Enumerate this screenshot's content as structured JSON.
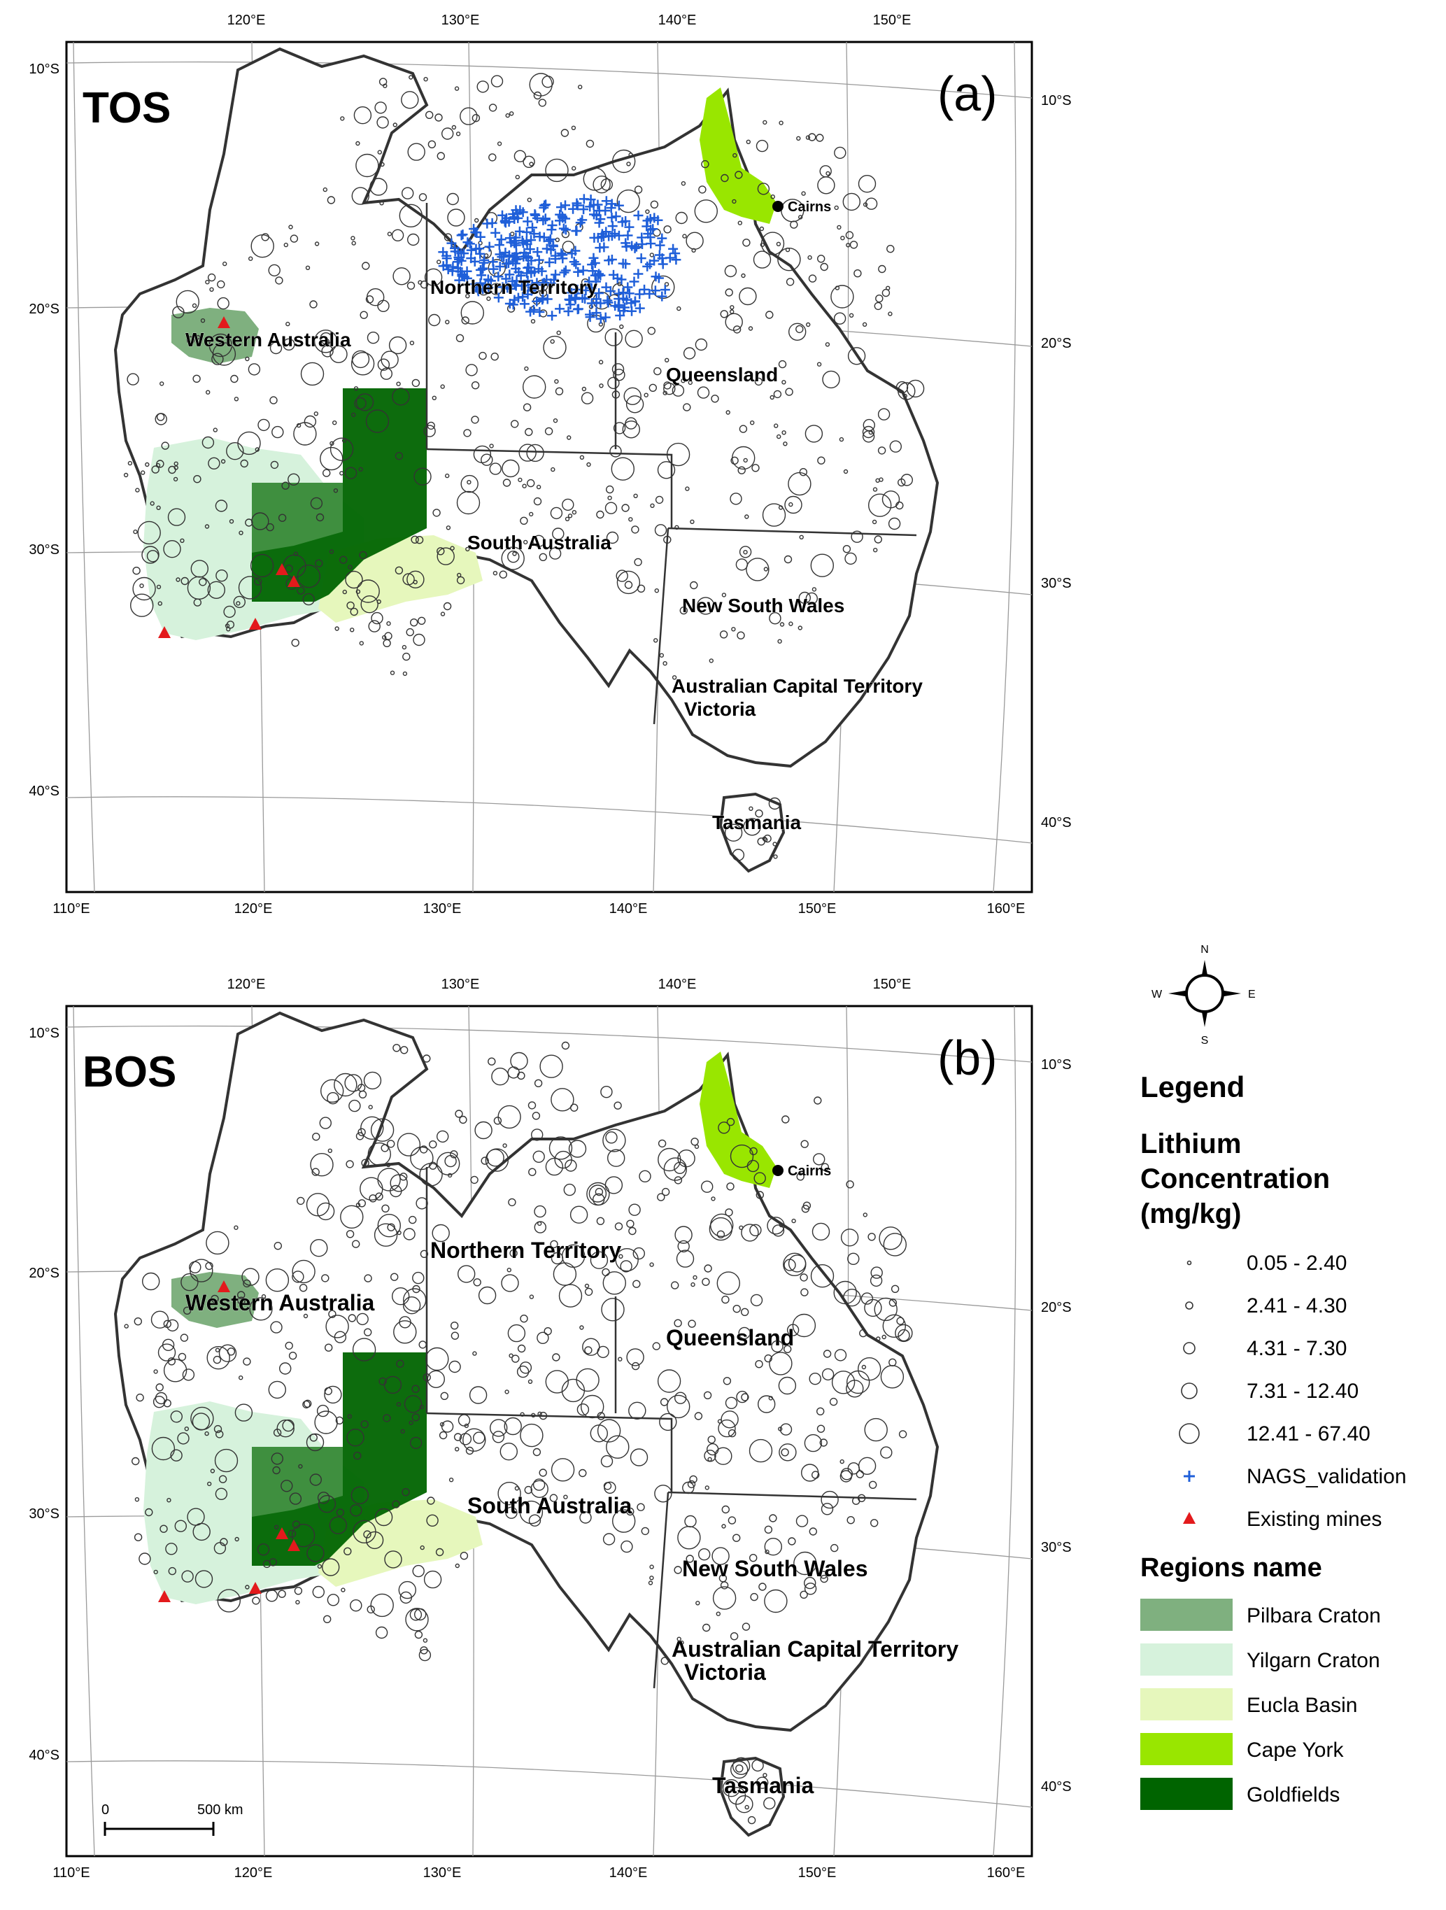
{
  "panels": [
    {
      "id": "a",
      "label": "TOS",
      "panel_letter": "(a)",
      "show_validation": true,
      "regions": {
        "western_australia": "Western Australia",
        "northern_territory": "Northern Territory",
        "south_australia": "South Australia",
        "queensland": "Queensland",
        "new_south_wales": "New South Wales",
        "act": "Australian Capital Territory",
        "victoria": "Victoria",
        "tasmania": "Tasmania"
      },
      "city": "Cairns"
    },
    {
      "id": "b",
      "label": "BOS",
      "panel_letter": "(b)",
      "show_validation": false,
      "regions": {
        "western_australia": "Western Australia",
        "northern_territory": "Northern Territory",
        "south_australia": "South Australia",
        "queensland": "Queensland",
        "new_south_wales": "New South Wales",
        "act": "Australian Capital Territory",
        "victoria": "Victoria",
        "tasmania": "Tasmania"
      },
      "city": "Cairns",
      "scale_bar": {
        "start": "0",
        "end": "500 km"
      }
    }
  ],
  "graticule": {
    "top_lon": [
      "120°E",
      "130°E",
      "140°E",
      "150°E"
    ],
    "bottom_lon": [
      "110°E",
      "120°E",
      "130°E",
      "140°E",
      "150°E",
      "160°E"
    ],
    "left_lat": [
      "10°S",
      "20°S",
      "30°S",
      "40°S"
    ],
    "right_lat": [
      "10°S",
      "20°S",
      "30°S",
      "40°S"
    ]
  },
  "compass": {
    "n": "N",
    "s": "S",
    "e": "E",
    "w": "W"
  },
  "legend": {
    "title": "Legend",
    "concentration_title_1": "Lithium",
    "concentration_title_2": "Concentration",
    "concentration_title_3": "(mg/kg)",
    "classes": [
      "0.05 - 2.40",
      "2.41 - 4.30",
      "4.31 - 7.30",
      "7.31 - 12.40",
      "12.41 - 67.40"
    ],
    "validation_label": "NAGS_validation",
    "mines_label": "Existing mines",
    "regions_title": "Regions name",
    "regions": [
      {
        "name": "Pilbara Craton",
        "color": "#7fb07f"
      },
      {
        "name": "Yilgarn Craton",
        "color": "#d6f2dc"
      },
      {
        "name": "Eucla Basin",
        "color": "#e6f7bc"
      },
      {
        "name": "Cape York",
        "color": "#99e600"
      },
      {
        "name": "Goldfields",
        "color": "#006400"
      }
    ]
  },
  "colors": {
    "validation": "#1f5fd9",
    "mine": "#e31a1c",
    "coast": "#333333"
  }
}
